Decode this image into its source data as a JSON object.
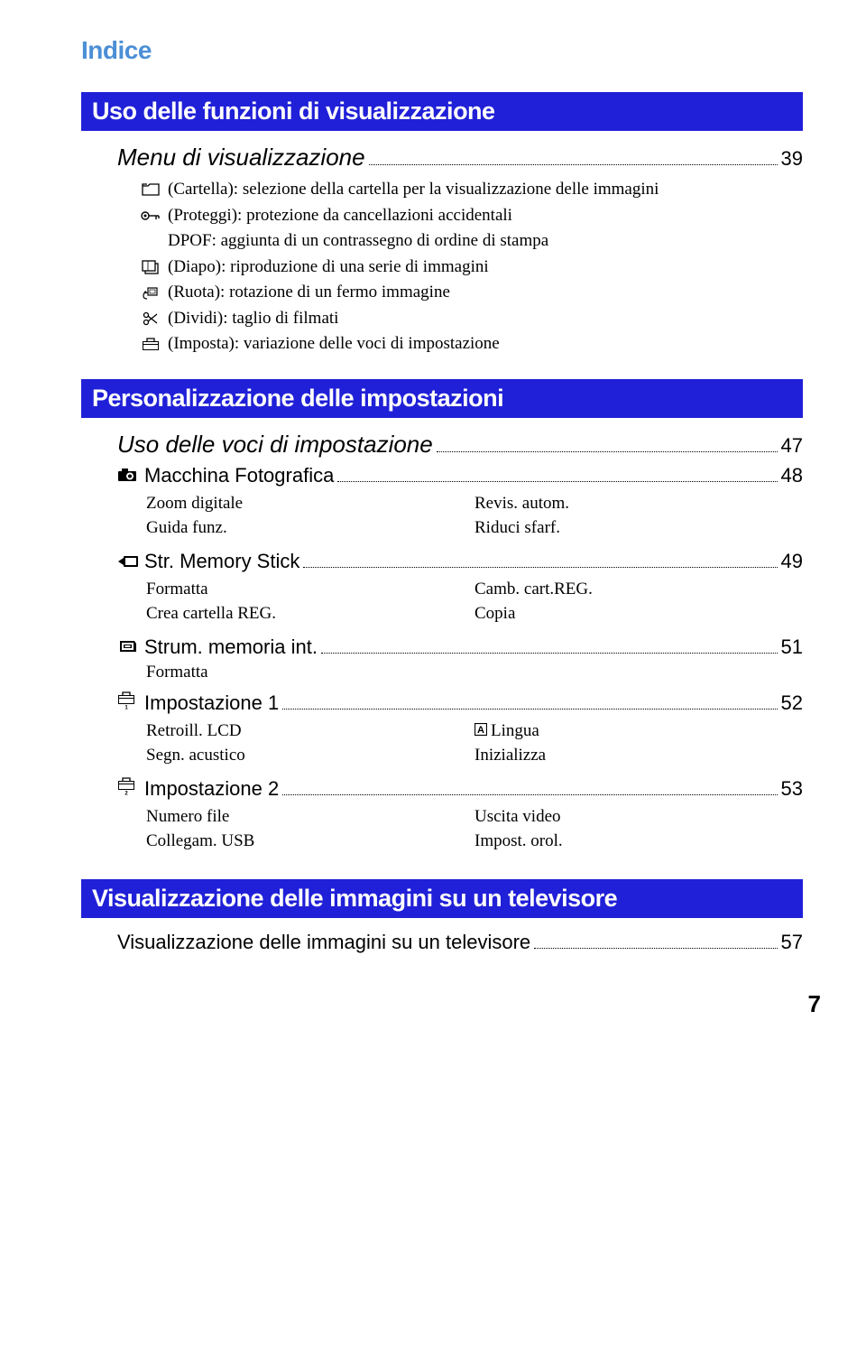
{
  "header": "Indice",
  "section1": {
    "title": "Uso delle funzioni di visualizzazione",
    "menu_title": "Menu di visualizzazione",
    "menu_page": "39",
    "items": [
      {
        "icon": "folder",
        "text": "(Cartella): selezione della cartella per la visualizzazione delle immagini"
      },
      {
        "icon": "key",
        "text": "(Proteggi): protezione da cancellazioni accidentali"
      },
      {
        "icon": "none",
        "text": "DPOF: aggiunta di un contrassegno di ordine di stampa"
      },
      {
        "icon": "slide",
        "text": "(Diapo): riproduzione di una serie di immagini"
      },
      {
        "icon": "rotate",
        "text": "(Ruota): rotazione di un fermo immagine"
      },
      {
        "icon": "scissors",
        "text": "(Dividi): taglio di filmati"
      },
      {
        "icon": "toolbox",
        "text": "(Imposta): variazione delle voci di impostazione"
      }
    ]
  },
  "section2": {
    "title": "Personalizzazione delle impostazioni",
    "entries": [
      {
        "type": "italic",
        "text": "Uso delle voci di impostazione",
        "page": "47"
      },
      {
        "type": "entry",
        "icon": "camera",
        "text": "Macchina Fotografica",
        "page": "48",
        "cols": [
          [
            "Zoom digitale",
            "Guida funz."
          ],
          [
            "Revis. autom.",
            "Riduci sfarf."
          ]
        ]
      },
      {
        "type": "entry",
        "icon": "ms",
        "text": "Str. Memory Stick",
        "page": "49",
        "cols": [
          [
            "Formatta",
            "Crea cartella REG."
          ],
          [
            "Camb. cart.REG.",
            "Copia"
          ]
        ]
      },
      {
        "type": "entry",
        "icon": "chip",
        "text": "Strum. memoria int.",
        "page": "51",
        "single": "Formatta"
      },
      {
        "type": "entry",
        "icon": "tb1",
        "text": "Impostazione 1",
        "page": "52",
        "cols": [
          [
            "Retroill. LCD",
            "Segn. acustico"
          ],
          [
            "A|Lingua",
            "Inizializza"
          ]
        ]
      },
      {
        "type": "entry",
        "icon": "tb2",
        "text": "Impostazione 2",
        "page": "53",
        "cols": [
          [
            "Numero file",
            "Collegam. USB"
          ],
          [
            "Uscita video",
            "Impost. orol."
          ]
        ]
      }
    ]
  },
  "section3": {
    "title": "Visualizzazione delle immagini su un televisore",
    "entry_text": "Visualizzazione delle immagini su un televisore",
    "entry_page": "57"
  },
  "page_number": "7"
}
